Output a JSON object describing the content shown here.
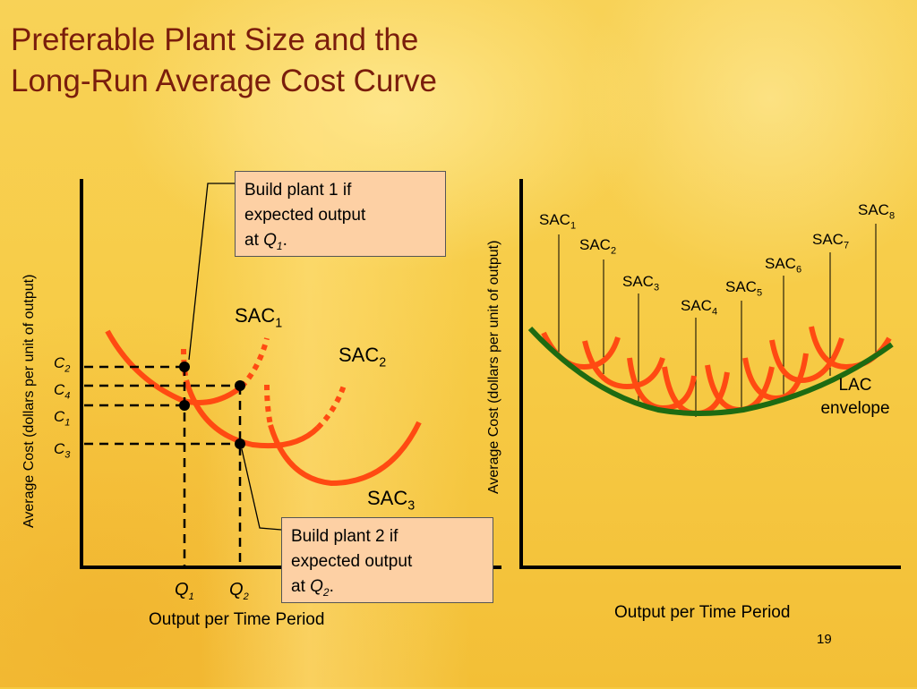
{
  "title": {
    "line1": "Preferable Plant Size and the",
    "line2": "Long-Run Average Cost Curve"
  },
  "left_panel": {
    "y_axis_label": "Average Cost (dollars per unit of output)",
    "x_axis_label": "Output per Time Period",
    "cost_levels": [
      {
        "letter": "C",
        "sub": "2"
      },
      {
        "letter": "C",
        "sub": "4"
      },
      {
        "letter": "C",
        "sub": "1"
      },
      {
        "letter": "C",
        "sub": "3"
      }
    ],
    "outputs": [
      {
        "letter": "Q",
        "sub": "1"
      },
      {
        "letter": "Q",
        "sub": "2"
      }
    ],
    "curves": [
      {
        "name": "SAC",
        "sub": "1"
      },
      {
        "name": "SAC",
        "sub": "2"
      },
      {
        "name": "SAC",
        "sub": "3"
      }
    ],
    "callout_1": {
      "line1": "Build plant 1 if",
      "line2": "expected output",
      "line3_prefix": "at ",
      "q": "Q",
      "q_sub": "1",
      "end": "."
    },
    "callout_2": {
      "line1": "Build plant 2 if",
      "line2": "expected output",
      "line3_prefix": "at ",
      "q": "Q",
      "q_sub": "2",
      "end": "."
    }
  },
  "right_panel": {
    "y_axis_label": "Average Cost (dollars per unit of output)",
    "x_axis_label": "Output per Time Period",
    "curves": [
      {
        "name": "SAC",
        "sub": "1"
      },
      {
        "name": "SAC",
        "sub": "2"
      },
      {
        "name": "SAC",
        "sub": "3"
      },
      {
        "name": "SAC",
        "sub": "4"
      },
      {
        "name": "SAC",
        "sub": "5"
      },
      {
        "name": "SAC",
        "sub": "6"
      },
      {
        "name": "SAC",
        "sub": "7"
      },
      {
        "name": "SAC",
        "sub": "8"
      }
    ],
    "envelope": {
      "line1": "LAC",
      "line2": "envelope"
    }
  },
  "page_number": "19",
  "colors": {
    "title": "#7a1d0c",
    "sac_curve": "#ff4a12",
    "lac_curve": "#1e6b12",
    "callout_fill": "#fdd0a4"
  }
}
